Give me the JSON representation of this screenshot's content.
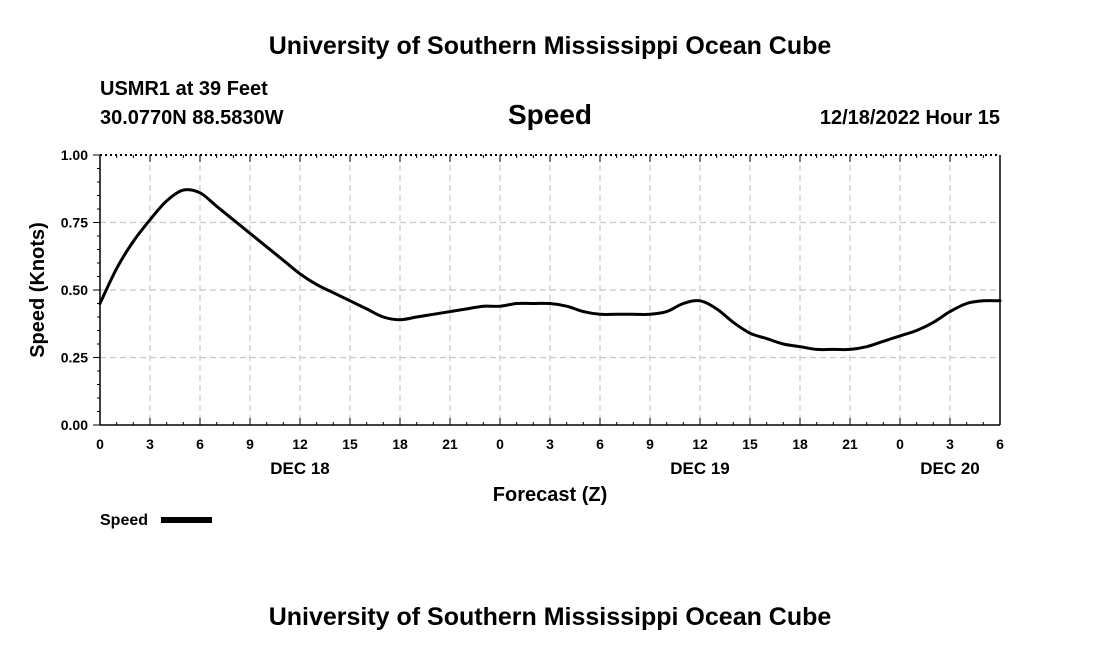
{
  "header": {
    "title_top": "University of Southern Mississippi Ocean Cube",
    "station": "USMR1 at 39 Feet",
    "location": "30.0770N  88.5830W",
    "plot_title": "Speed",
    "timestamp": "12/18/2022 Hour 15"
  },
  "footer": {
    "title_bottom": "University of Southern Mississippi Ocean Cube"
  },
  "colors": {
    "line": "#000000",
    "grid": "#c8c8c8",
    "background": "#ffffff"
  },
  "chart_data": {
    "type": "line",
    "title": "Speed",
    "xlabel": "Forecast (Z)",
    "ylabel": "Speed (Knots)",
    "ylim": [
      0,
      1
    ],
    "xlim": [
      0,
      54
    ],
    "grid": true,
    "y_ticks": [
      0,
      0.25,
      0.5,
      0.75,
      1
    ],
    "y_tick_labels": [
      "0.00",
      "0.25",
      "0.50",
      "0.75",
      "1.00"
    ],
    "x_ticks": [
      0,
      3,
      6,
      9,
      12,
      15,
      18,
      21,
      24,
      27,
      30,
      33,
      36,
      39,
      42,
      45,
      48,
      51,
      54
    ],
    "x_tick_labels": [
      "0",
      "3",
      "6",
      "9",
      "12",
      "15",
      "18",
      "21",
      "0",
      "3",
      "6",
      "9",
      "12",
      "15",
      "18",
      "21",
      "0",
      "3",
      "6"
    ],
    "date_labels": [
      {
        "x": 12,
        "label": "DEC 18"
      },
      {
        "x": 36,
        "label": "DEC 19"
      },
      {
        "x": 51,
        "label": "DEC 20"
      }
    ],
    "legend": {
      "label": "Speed",
      "position": "bottom-left"
    },
    "series": [
      {
        "name": "Speed",
        "x": [
          0,
          1,
          2,
          3,
          4,
          5,
          6,
          7,
          8,
          9,
          10,
          11,
          12,
          13,
          14,
          15,
          16,
          17,
          18,
          19,
          20,
          21,
          22,
          23,
          24,
          25,
          26,
          27,
          28,
          29,
          30,
          31,
          32,
          33,
          34,
          35,
          36,
          37,
          38,
          39,
          40,
          41,
          42,
          43,
          44,
          45,
          46,
          47,
          48,
          49,
          50,
          51,
          52,
          53,
          54
        ],
        "values": [
          0.45,
          0.58,
          0.68,
          0.76,
          0.83,
          0.87,
          0.86,
          0.81,
          0.76,
          0.71,
          0.66,
          0.61,
          0.56,
          0.52,
          0.49,
          0.46,
          0.43,
          0.4,
          0.39,
          0.4,
          0.41,
          0.42,
          0.43,
          0.44,
          0.44,
          0.45,
          0.45,
          0.45,
          0.44,
          0.42,
          0.41,
          0.41,
          0.41,
          0.41,
          0.42,
          0.45,
          0.46,
          0.43,
          0.38,
          0.34,
          0.32,
          0.3,
          0.29,
          0.28,
          0.28,
          0.28,
          0.29,
          0.31,
          0.33,
          0.35,
          0.38,
          0.42,
          0.45,
          0.46,
          0.46
        ]
      }
    ]
  }
}
